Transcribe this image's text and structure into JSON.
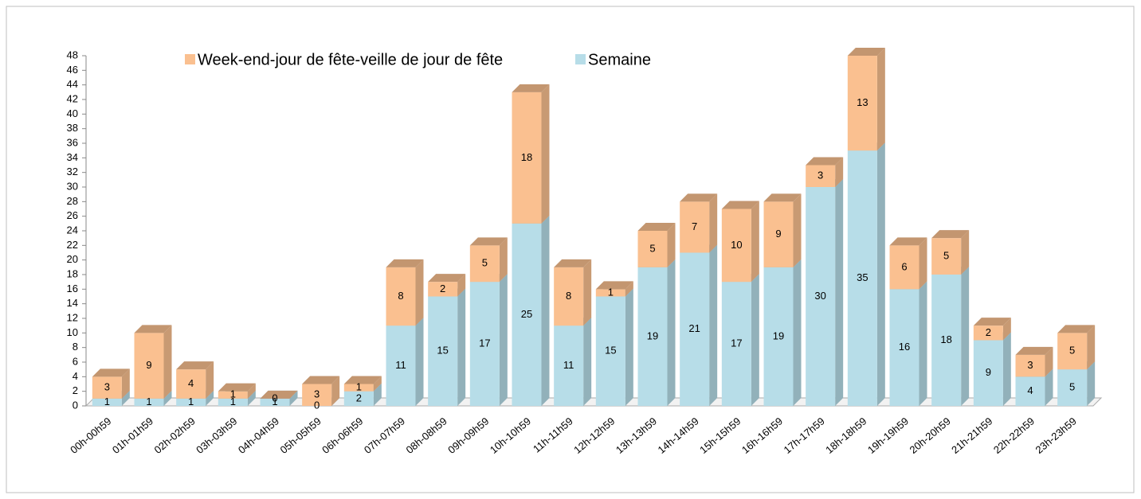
{
  "chart_data": {
    "type": "bar3d-stacked",
    "categories": [
      "00h-00h59",
      "01h-01h59",
      "02h-02h59",
      "03h-03h59",
      "04h-04h59",
      "05h-05h59",
      "06h-06h59",
      "07h-07h59",
      "08h-08h59",
      "09h-09h59",
      "10h-10h59",
      "11h-11h59",
      "12h-12h59",
      "13h-13h59",
      "14h-14h59",
      "15h-15h59",
      "16h-16h59",
      "17h-17h59",
      "18h-18h59",
      "19h-19h59",
      "20h-20h59",
      "21h-21h59",
      "22h-22h59",
      "23h-23h59"
    ],
    "series": [
      {
        "name": "Week-end-jour de fête-veille de jour de fête",
        "color": "#fac090",
        "values": [
          3,
          9,
          4,
          1,
          0,
          3,
          1,
          8,
          2,
          5,
          18,
          8,
          1,
          5,
          7,
          10,
          9,
          3,
          13,
          6,
          5,
          2,
          3,
          5
        ]
      },
      {
        "name": "Semaine",
        "color": "#b7dde8",
        "values": [
          1,
          1,
          1,
          1,
          1,
          0,
          2,
          11,
          15,
          17,
          25,
          11,
          15,
          19,
          21,
          17,
          19,
          30,
          35,
          16,
          18,
          9,
          4,
          5
        ]
      }
    ],
    "ylim": [
      0,
      48
    ],
    "yticks": [
      0,
      2,
      4,
      6,
      8,
      10,
      12,
      14,
      16,
      18,
      20,
      22,
      24,
      26,
      28,
      30,
      32,
      34,
      36,
      38,
      40,
      42,
      44,
      46,
      48
    ],
    "legend": "top"
  }
}
